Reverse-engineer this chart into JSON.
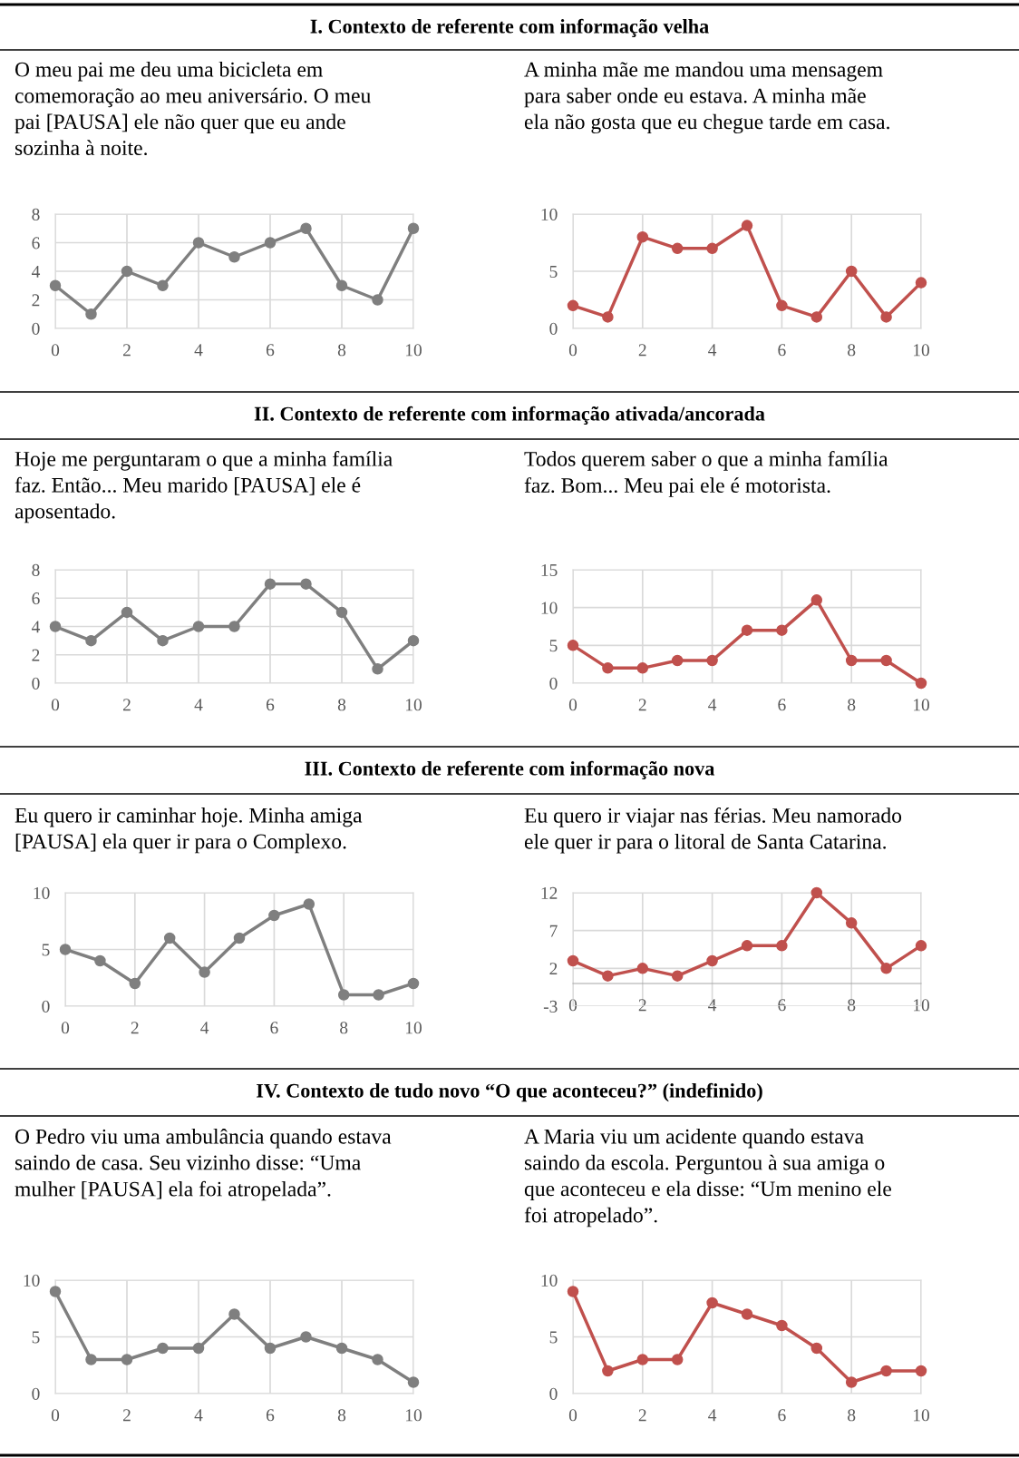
{
  "chart_data": [
    {
      "type": "line",
      "annotations": [
        "I. Contexto de referente com informação velha"
      ],
      "title": "O meu pai me deu uma bicicleta em\ncomemoração ao meu aniversário. O meu\npai [PAUSA] ele não quer que eu ande\nsozinha à noite.",
      "x": [
        0,
        1,
        2,
        3,
        4,
        5,
        6,
        7,
        8,
        9,
        10
      ],
      "series": [
        {
          "color": "#7f7f7f",
          "values": [
            3,
            1,
            4,
            3,
            6,
            5,
            6,
            7,
            3,
            2,
            7
          ]
        }
      ],
      "xlim": [
        0,
        10
      ],
      "xticks": [
        0,
        2,
        4,
        6,
        8,
        10
      ],
      "ylim": [
        0,
        8
      ],
      "yticks": [
        0,
        2,
        4,
        6,
        8
      ],
      "grid": true,
      "marker": "circle",
      "line_style": "solid"
    },
    {
      "type": "line",
      "title": "A minha mãe me mandou uma mensagem\npara saber onde eu estava. A minha mãe\nela não gosta que eu chegue tarde em casa.",
      "x": [
        0,
        1,
        2,
        3,
        4,
        5,
        6,
        7,
        8,
        9,
        10
      ],
      "series": [
        {
          "color": "#c0504d",
          "values": [
            2,
            1,
            8,
            7,
            7,
            9,
            2,
            1,
            5,
            1,
            4
          ]
        }
      ],
      "xlim": [
        0,
        10
      ],
      "xticks": [
        0,
        2,
        4,
        6,
        8,
        10
      ],
      "ylim": [
        0,
        10
      ],
      "yticks": [
        0,
        5,
        10
      ],
      "grid": true,
      "marker": "circle",
      "line_style": "solid"
    },
    {
      "type": "line",
      "annotations": [
        "II. Contexto de referente com informação ativada/ancorada"
      ],
      "title": "Hoje me perguntaram o que a minha família\nfaz. Então... Meu marido [PAUSA] ele é\naposentado.",
      "x": [
        0,
        1,
        2,
        3,
        4,
        5,
        6,
        7,
        8,
        9,
        10
      ],
      "series": [
        {
          "color": "#7f7f7f",
          "values": [
            4,
            3,
            5,
            3,
            4,
            4,
            7,
            7,
            5,
            1,
            3
          ]
        }
      ],
      "xlim": [
        0,
        10
      ],
      "xticks": [
        0,
        2,
        4,
        6,
        8,
        10
      ],
      "ylim": [
        0,
        8
      ],
      "yticks": [
        0,
        2,
        4,
        6,
        8
      ],
      "grid": true,
      "marker": "circle",
      "line_style": "solid"
    },
    {
      "type": "line",
      "title": "Todos querem saber o que a minha família\nfaz. Bom... Meu pai ele é motorista.",
      "x": [
        0,
        1,
        2,
        3,
        4,
        5,
        6,
        7,
        8,
        9,
        10
      ],
      "series": [
        {
          "color": "#c0504d",
          "values": [
            5,
            2,
            2,
            3,
            3,
            7,
            7,
            11,
            3,
            3,
            0
          ]
        }
      ],
      "xlim": [
        0,
        10
      ],
      "xticks": [
        0,
        2,
        4,
        6,
        8,
        10
      ],
      "ylim": [
        0,
        15
      ],
      "yticks": [
        0,
        5,
        10,
        15
      ],
      "grid": true,
      "marker": "circle",
      "line_style": "solid"
    },
    {
      "type": "line",
      "annotations": [
        "III. Contexto de referente com informação nova"
      ],
      "title": "Eu quero ir caminhar hoje. Minha amiga\n[PAUSA] ela quer ir para o Complexo.",
      "x": [
        0,
        1,
        2,
        3,
        4,
        5,
        6,
        7,
        8,
        9,
        10
      ],
      "series": [
        {
          "color": "#7f7f7f",
          "values": [
            5,
            4,
            2,
            6,
            3,
            6,
            8,
            9,
            1,
            1,
            2
          ]
        }
      ],
      "xlim": [
        0,
        10
      ],
      "xticks": [
        0,
        2,
        4,
        6,
        8,
        10
      ],
      "ylim": [
        0,
        10
      ],
      "yticks": [
        0,
        5,
        10
      ],
      "grid": true,
      "marker": "circle",
      "line_style": "solid"
    },
    {
      "type": "line",
      "title": "Eu quero ir viajar nas férias. Meu namorado\nele quer ir para o litoral de Santa Catarina.",
      "x": [
        0,
        1,
        2,
        3,
        4,
        5,
        6,
        7,
        8,
        9,
        10
      ],
      "series": [
        {
          "color": "#c0504d",
          "values": [
            3,
            1,
            2,
            1,
            3,
            5,
            5,
            12,
            8,
            2,
            5
          ]
        }
      ],
      "xlim": [
        0,
        10
      ],
      "xticks": [
        0,
        2,
        4,
        6,
        8,
        10
      ],
      "ylim": [
        -3,
        12
      ],
      "yticks": [
        -3,
        2,
        7,
        12
      ],
      "grid": true,
      "marker": "circle",
      "line_style": "solid"
    },
    {
      "type": "line",
      "annotations": [
        "IV. Contexto de tudo novo “O que aconteceu?” (indefinido)"
      ],
      "title": "O Pedro viu uma ambulância quando estava\nsaindo de casa. Seu vizinho disse: “Uma\nmulher [PAUSA] ela foi atropelada”.",
      "x": [
        0,
        1,
        2,
        3,
        4,
        5,
        6,
        7,
        8,
        9,
        10
      ],
      "series": [
        {
          "color": "#7f7f7f",
          "values": [
            9,
            3,
            3,
            4,
            4,
            7,
            4,
            5,
            4,
            3,
            1
          ]
        }
      ],
      "xlim": [
        0,
        10
      ],
      "xticks": [
        0,
        2,
        4,
        6,
        8,
        10
      ],
      "ylim": [
        0,
        10
      ],
      "yticks": [
        0,
        5,
        10
      ],
      "grid": true,
      "marker": "circle",
      "line_style": "solid"
    },
    {
      "type": "line",
      "title": "A Maria viu um acidente quando estava\nsaindo da escola. Perguntou à sua amiga o\nque aconteceu e ela disse: “Um menino ele\nfoi atropelado”.",
      "x": [
        0,
        1,
        2,
        3,
        4,
        5,
        6,
        7,
        8,
        9,
        10
      ],
      "series": [
        {
          "color": "#c0504d",
          "values": [
            9,
            2,
            3,
            3,
            8,
            7,
            6,
            4,
            1,
            2,
            2
          ]
        }
      ],
      "xlim": [
        0,
        10
      ],
      "xticks": [
        0,
        2,
        4,
        6,
        8,
        10
      ],
      "ylim": [
        0,
        10
      ],
      "yticks": [
        0,
        5,
        10
      ],
      "grid": true,
      "marker": "circle",
      "line_style": "solid"
    }
  ]
}
